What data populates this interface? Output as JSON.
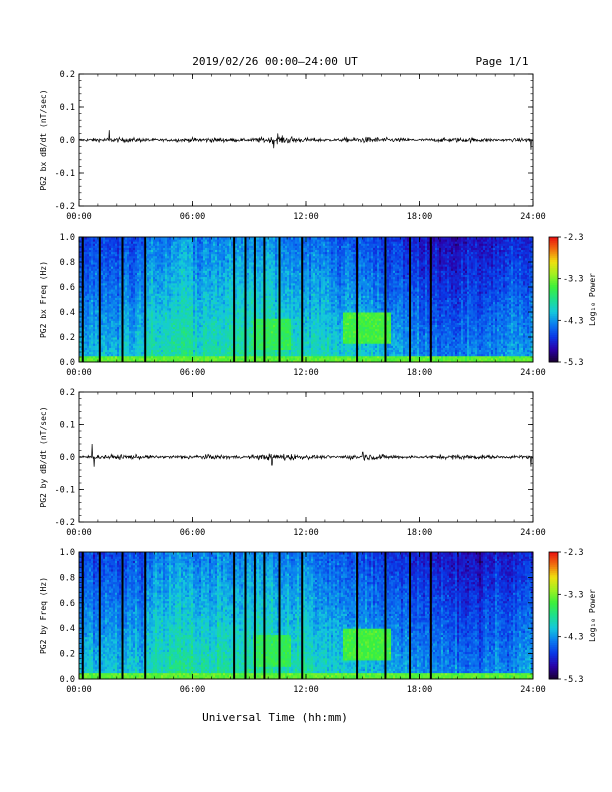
{
  "header": {
    "title": "2019/02/26  00:00–24:00 UT",
    "page": "Page 1/1"
  },
  "footer": {
    "xlabel": "Universal Time (hh:mm)"
  },
  "colors": {
    "trace": "#000000",
    "colormap": [
      "#1a0033",
      "#2a00a8",
      "#0a37e6",
      "#0a7cf0",
      "#14c8dc",
      "#1ee08c",
      "#3cf03c",
      "#a0f020",
      "#f0e010",
      "#f07010",
      "#e81010"
    ]
  },
  "chart_data": [
    {
      "id": "bx-dbdt",
      "type": "line",
      "ylabel": "PG2 bx dB/dt (nT/sec)",
      "xlim": [
        0,
        24
      ],
      "ylim": [
        -0.2,
        0.2
      ],
      "x_ticks": [
        "00:00",
        "06:00",
        "12:00",
        "18:00",
        "24:00"
      ],
      "y_ticks": [
        "0.2",
        "0.1",
        "0.0",
        "-0.1",
        "-0.2"
      ],
      "baseline": 0.0,
      "typical_amplitude": 0.01,
      "peaks": [
        {
          "x": 1.6,
          "y": 0.03
        },
        {
          "x": 10.3,
          "y": -0.025
        },
        {
          "x": 10.5,
          "y": 0.02
        },
        {
          "x": 23.9,
          "y": 0.035
        },
        {
          "x": 23.9,
          "y": -0.03
        }
      ]
    },
    {
      "id": "bx-spectrogram",
      "type": "heatmap",
      "ylabel": "PG2 bx Freq (Hz)",
      "xlim": [
        0,
        24
      ],
      "ylim": [
        0.0,
        1.0
      ],
      "x_ticks": [
        "00:00",
        "06:00",
        "12:00",
        "18:00",
        "24:00"
      ],
      "y_ticks": [
        "1.0",
        "0.8",
        "0.6",
        "0.4",
        "0.2",
        "0.0"
      ],
      "colorbar": {
        "label": "Log₁₀ Power",
        "range": [
          -5.3,
          -2.3
        ],
        "ticks": [
          "-2.3",
          "-3.3",
          "-4.3",
          "-5.3"
        ]
      },
      "gap_lines_hours": [
        0.2,
        1.1,
        2.3,
        3.5,
        8.2,
        8.8,
        9.3,
        9.8,
        10.6,
        11.8,
        14.7,
        16.2,
        17.5,
        18.6
      ],
      "enhancements": [
        {
          "t_start": 14.0,
          "t_end": 16.5,
          "f_start": 0.15,
          "f_end": 0.4,
          "level": -3.5
        },
        {
          "t_start": 9.2,
          "t_end": 11.2,
          "f_start": 0.1,
          "f_end": 0.35,
          "level": -3.6
        },
        {
          "t_start": 0,
          "t_end": 24,
          "f_start": 0.0,
          "f_end": 0.05,
          "level": -3.4
        }
      ]
    },
    {
      "id": "by-dbdt",
      "type": "line",
      "ylabel": "PG2 by dB/dt (nT/sec)",
      "xlim": [
        0,
        24
      ],
      "ylim": [
        -0.2,
        0.2
      ],
      "x_ticks": [
        "00:00",
        "06:00",
        "12:00",
        "18:00",
        "24:00"
      ],
      "y_ticks": [
        "0.2",
        "0.1",
        "0.0",
        "-0.1",
        "-0.2"
      ],
      "baseline": 0.0,
      "typical_amplitude": 0.01,
      "peaks": [
        {
          "x": 0.7,
          "y": 0.04
        },
        {
          "x": 0.8,
          "y": -0.03
        },
        {
          "x": 10.2,
          "y": -0.025
        },
        {
          "x": 15.0,
          "y": 0.015
        },
        {
          "x": 23.9,
          "y": 0.04
        },
        {
          "x": 23.9,
          "y": -0.03
        }
      ]
    },
    {
      "id": "by-spectrogram",
      "type": "heatmap",
      "ylabel": "PG2 by Freq (Hz)",
      "xlim": [
        0,
        24
      ],
      "ylim": [
        0.0,
        1.0
      ],
      "x_ticks": [
        "00:00",
        "06:00",
        "12:00",
        "18:00",
        "24:00"
      ],
      "y_ticks": [
        "1.0",
        "0.8",
        "0.6",
        "0.4",
        "0.2",
        "0.0"
      ],
      "colorbar": {
        "label": "Log₁₀ Power",
        "range": [
          -5.3,
          -2.3
        ],
        "ticks": [
          "-2.3",
          "-3.3",
          "-4.3",
          "-5.3"
        ]
      },
      "gap_lines_hours": [
        0.2,
        1.1,
        2.3,
        3.5,
        8.2,
        8.8,
        9.3,
        9.8,
        10.6,
        11.8,
        14.7,
        16.2,
        17.5,
        18.6
      ],
      "enhancements": [
        {
          "t_start": 14.0,
          "t_end": 16.5,
          "f_start": 0.15,
          "f_end": 0.4,
          "level": -3.5
        },
        {
          "t_start": 9.2,
          "t_end": 11.2,
          "f_start": 0.1,
          "f_end": 0.35,
          "level": -3.6
        },
        {
          "t_start": 0,
          "t_end": 24,
          "f_start": 0.0,
          "f_end": 0.05,
          "level": -3.4
        }
      ]
    }
  ]
}
